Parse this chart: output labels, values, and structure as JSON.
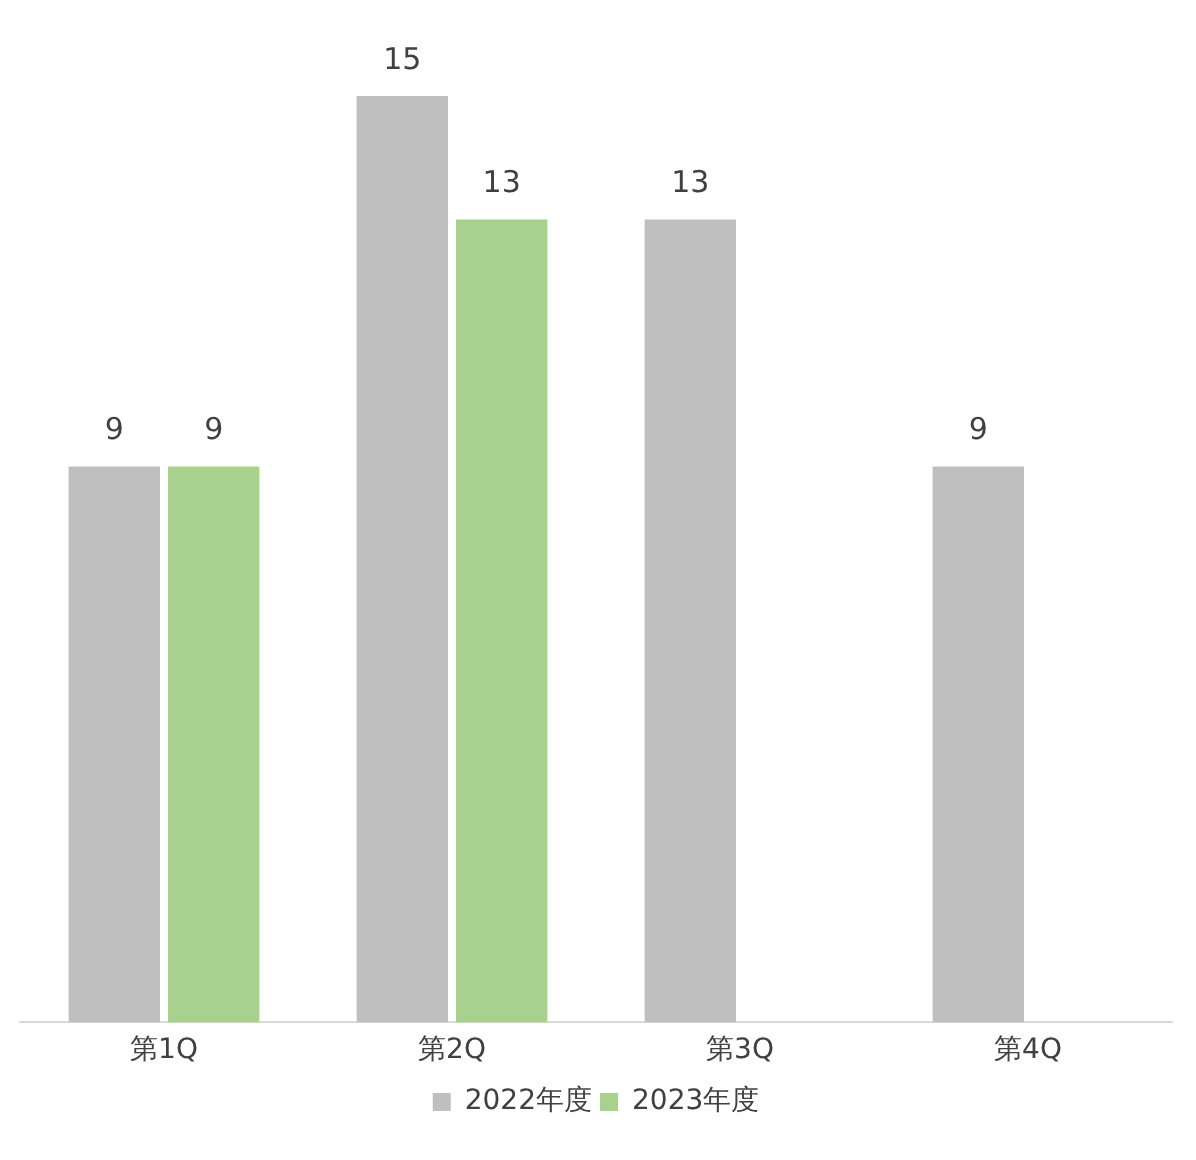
{
  "chart_data": {
    "type": "bar",
    "categories": [
      "第1Q",
      "第2Q",
      "第3Q",
      "第4Q"
    ],
    "series": [
      {
        "name": "2022年度",
        "color": "#bfbfbf",
        "values": [
          9,
          15,
          13,
          9
        ]
      },
      {
        "name": "2023年度",
        "color": "#a9d18e",
        "values": [
          9,
          13,
          null,
          null
        ]
      }
    ],
    "ylim": [
      0,
      15
    ],
    "tick_labels": "x",
    "grid": false,
    "legend": "bottom",
    "data_labels": true
  }
}
